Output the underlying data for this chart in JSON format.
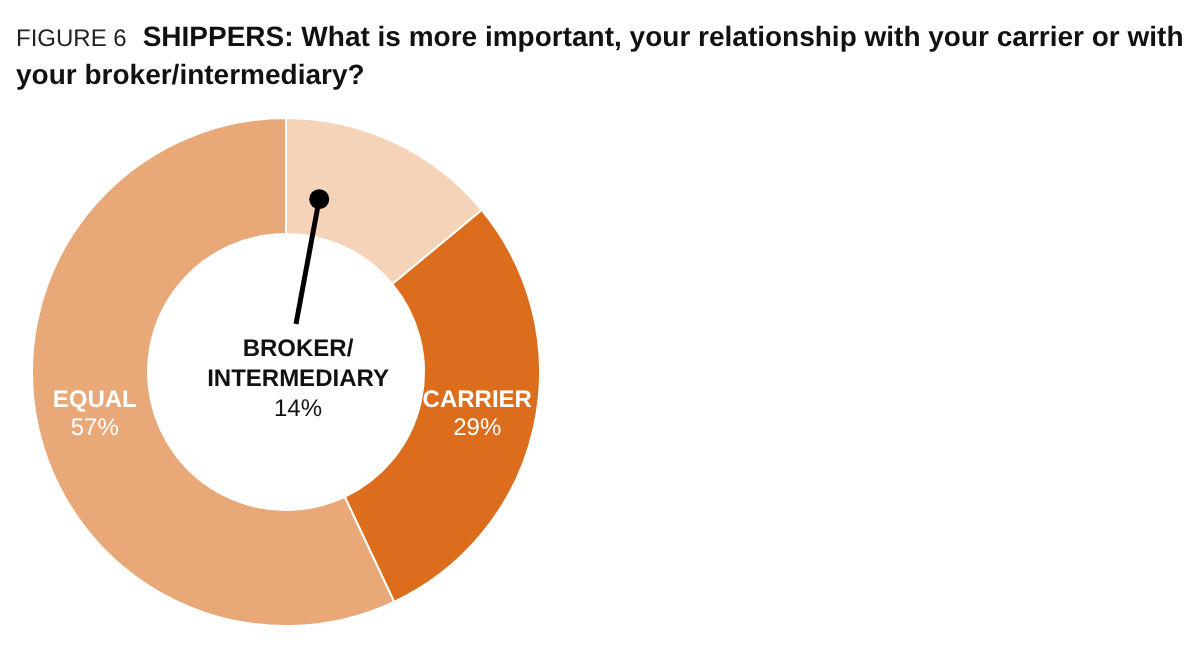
{
  "chart_data": {
    "type": "donut",
    "title": "SHIPPERS: What is more important, your relationship with your carrier or with your broker/intermediary?",
    "annotations": [
      "FIGURE 6"
    ],
    "categories": [
      "BROKER/INTERMEDIARY",
      "CARRIER",
      "EQUAL"
    ],
    "values": [
      14,
      29,
      57
    ],
    "colors": [
      "#f5d3b8",
      "#dc6d1d",
      "#e9a878"
    ],
    "value_labels": [
      "14%",
      "29%",
      "57%"
    ]
  }
}
